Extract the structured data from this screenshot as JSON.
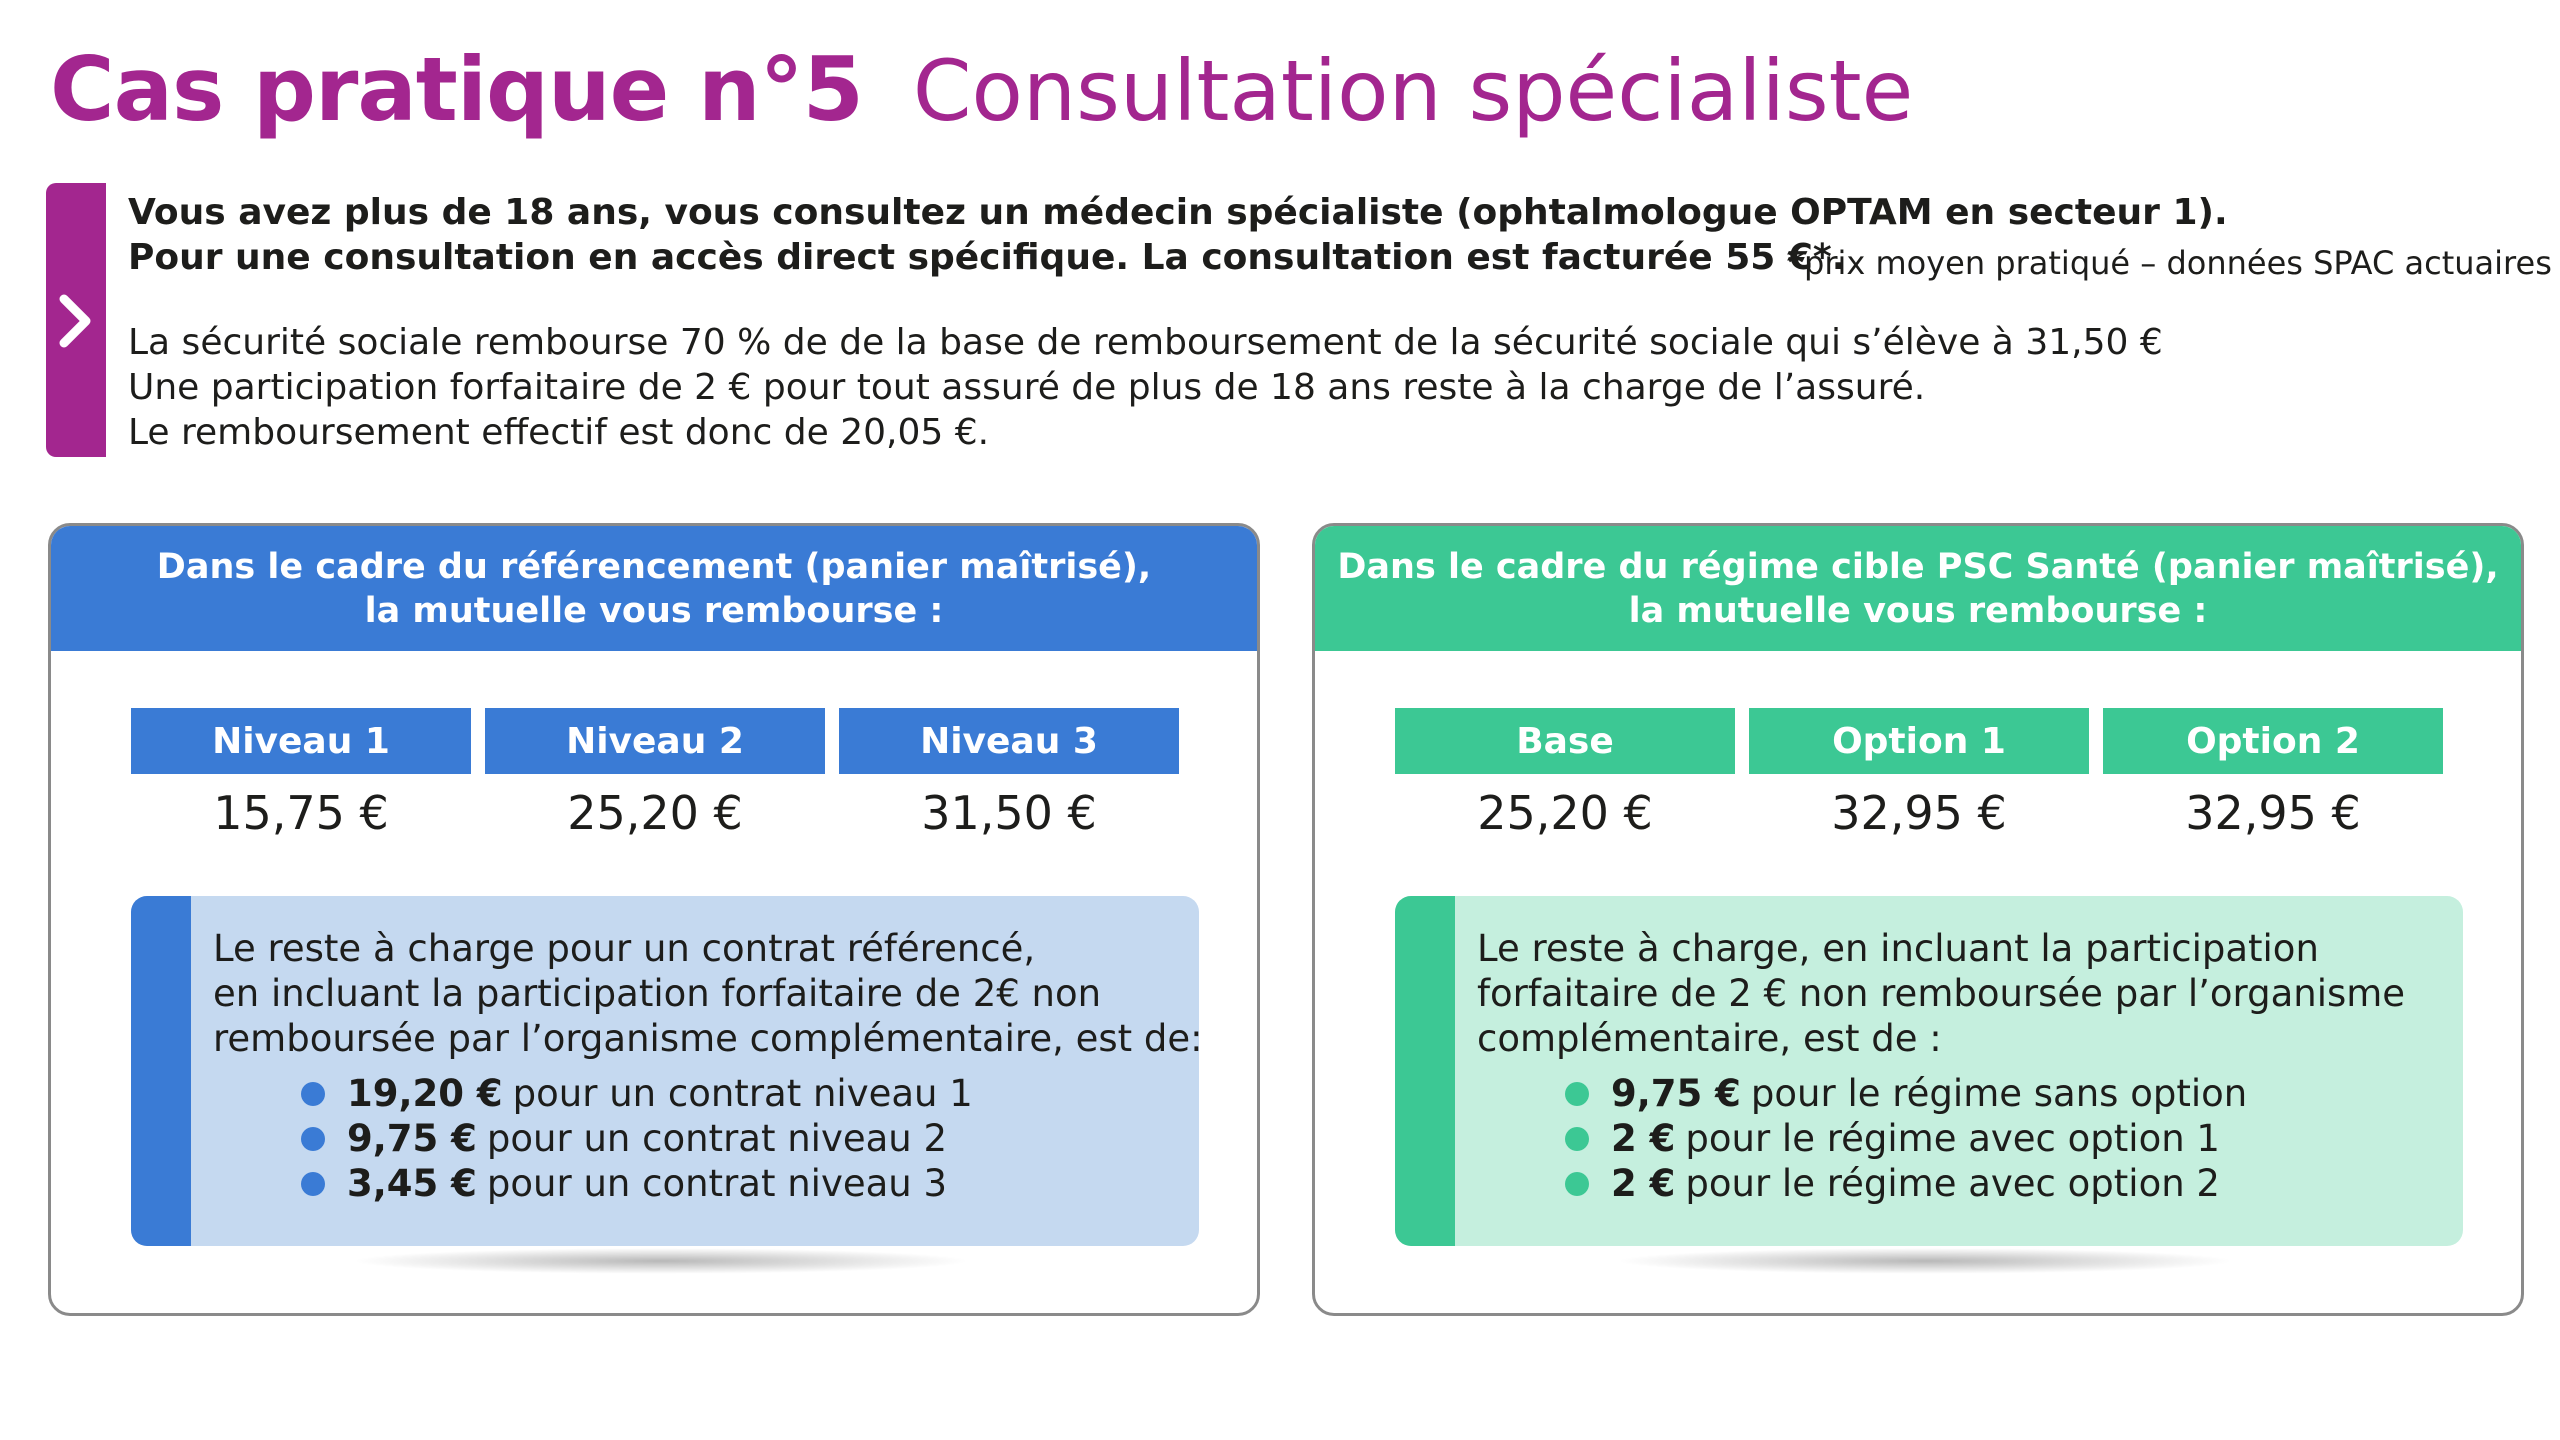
{
  "header": {
    "title": "Cas pratique n°5",
    "subtitle": "Consultation spécialiste"
  },
  "intro": {
    "chevron_icon": "chevron-right-icon",
    "bold_line1": "Vous avez plus de 18 ans, vous consultez un médecin spécialiste (ophtalmologue OPTAM en secteur 1).",
    "bold_line2": "Pour une consultation en accès direct spécifique. La consultation est facturée 55 €*.",
    "note": "*prix moyen pratiqué – données SPAC actuaires",
    "line1": "La sécurité sociale rembourse 70 % de de la base de remboursement de la sécurité sociale qui s’élève à 31,50 €",
    "line2": "Une participation forfaitaire de 2 € pour tout assuré de plus de 18 ans reste à la charge de l’assuré.",
    "line3": "Le remboursement effectif est donc de 20,05 €."
  },
  "panels": {
    "left": {
      "header_line1": "Dans le cadre du référencement (panier maîtrisé),",
      "header_line2": "la mutuelle vous rembourse :",
      "levels": [
        {
          "label": "Niveau 1",
          "value": "15,75 €"
        },
        {
          "label": "Niveau 2",
          "value": "25,20 €"
        },
        {
          "label": "Niveau 3",
          "value": "31,50 €"
        }
      ],
      "rest_line1": "Le reste à charge pour un contrat référencé,",
      "rest_line2": "en incluant la participation forfaitaire de 2€ non",
      "rest_line3": "remboursée par l’organisme complémentaire, est de:",
      "items": [
        {
          "amount": "19,20 €",
          "text": "pour un contrat niveau 1"
        },
        {
          "amount": "9,75 €",
          "text": "pour un contrat niveau 2"
        },
        {
          "amount": "3,45 €",
          "text": "pour un contrat niveau 3"
        }
      ],
      "accent": "#3a7bd5"
    },
    "right": {
      "header_line1": "Dans le cadre du régime cible PSC Santé (panier maîtrisé),",
      "header_line2": "la mutuelle vous rembourse :",
      "levels": [
        {
          "label": "Base",
          "value": "25,20 €"
        },
        {
          "label": "Option 1",
          "value": "32,95 €"
        },
        {
          "label": "Option 2",
          "value": "32,95 €"
        }
      ],
      "rest_line1": "Le reste à charge, en incluant la participation",
      "rest_line2": "forfaitaire de 2 € non remboursée par l’organisme",
      "rest_line3": "complémentaire, est de :",
      "items": [
        {
          "amount": "9,75 €",
          "text": "pour le régime sans option"
        },
        {
          "amount": "2 €",
          "text": "pour le régime avec option 1"
        },
        {
          "amount": "2 €",
          "text": "pour le régime avec option 2"
        }
      ],
      "accent": "#3cc894"
    }
  },
  "colors": {
    "brand": "#a3268f",
    "blue": "#3a7bd5",
    "green": "#3cc894"
  }
}
